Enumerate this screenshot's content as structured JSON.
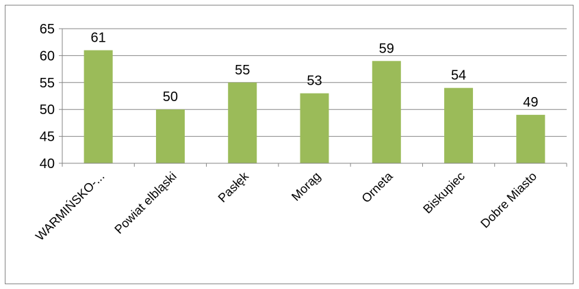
{
  "chart_data": {
    "type": "bar",
    "title": "",
    "xlabel": "",
    "ylabel": "",
    "categories": [
      "WARMIŃSKO-...",
      "Powiat elbląski",
      "Pasłęk",
      "Morąg",
      "Orneta",
      "Biskupiec",
      "Dobre Miasto"
    ],
    "values": [
      61,
      50,
      55,
      53,
      59,
      54,
      49
    ],
    "data_labels": [
      "61",
      "50",
      "55",
      "53",
      "59",
      "54",
      "49"
    ],
    "ylim": [
      40,
      65
    ],
    "yticks": [
      "40",
      "45",
      "50",
      "55",
      "60",
      "65"
    ],
    "grid": true,
    "legend": "none",
    "colors": {
      "bar": "#9bbb59",
      "grid": "#868686",
      "axis": "#868686"
    }
  }
}
